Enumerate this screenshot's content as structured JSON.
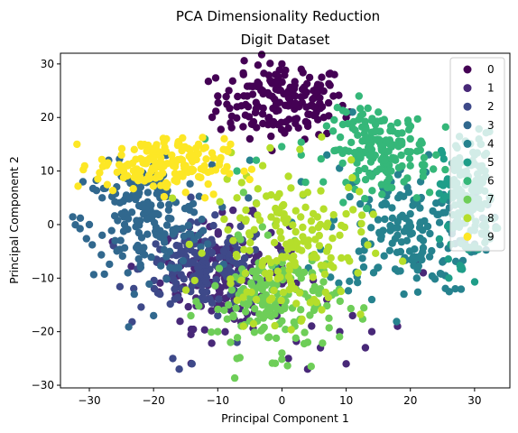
{
  "chart_data": {
    "type": "scatter",
    "title": "PCA Dimensionality Reduction",
    "subtitle": "Digit Dataset",
    "xlabel": "Principal Component 1",
    "ylabel": "Principal Component 2",
    "xlim": [
      -34.5,
      35.5
    ],
    "ylim": [
      -30.5,
      32.0
    ],
    "xticks": [
      -30,
      -20,
      -10,
      0,
      10,
      20,
      30
    ],
    "yticks": [
      -30,
      -20,
      -10,
      0,
      10,
      20,
      30
    ],
    "grid": false,
    "legend_position": "top-right",
    "palette": [
      "#440154",
      "#482878",
      "#3e4989",
      "#31688e",
      "#26828e",
      "#1f9e89",
      "#35b779",
      "#6ece58",
      "#b5de2b",
      "#fde725"
    ],
    "series": [
      {
        "name": "0",
        "center": [
          0,
          23
        ],
        "spread": [
          5,
          3.5
        ],
        "points": [
          [
            -6,
            28
          ],
          [
            0,
            30
          ],
          [
            3,
            29
          ],
          [
            -10,
            24
          ],
          [
            -8,
            19
          ],
          [
            10,
            20
          ],
          [
            7,
            17
          ],
          [
            -5,
            16
          ],
          [
            2,
            26
          ],
          [
            -2,
            20
          ],
          [
            5,
            22
          ],
          [
            -3,
            25
          ],
          [
            1,
            18
          ],
          [
            6,
            26
          ],
          [
            -7,
            22
          ],
          [
            8,
            24
          ],
          [
            4,
            19
          ],
          [
            -1,
            28
          ]
        ]
      },
      {
        "name": "1",
        "center": [
          -9,
          -9
        ],
        "spread": [
          5,
          5
        ],
        "points": [
          [
            10,
            -26
          ],
          [
            4,
            -27
          ],
          [
            13,
            -23
          ],
          [
            18,
            -19
          ],
          [
            22,
            -9
          ],
          [
            21,
            -7
          ],
          [
            11,
            -17
          ],
          [
            6,
            -23
          ],
          [
            9,
            -20
          ],
          [
            14,
            -20
          ],
          [
            7,
            -14
          ],
          [
            -10,
            -5
          ],
          [
            -6,
            -12
          ],
          [
            -14,
            -2
          ],
          [
            1,
            -25
          ],
          [
            -8,
            -16
          ],
          [
            -12,
            -9
          ],
          [
            -4,
            -6
          ]
        ]
      },
      {
        "name": "2",
        "center": [
          -12,
          -8
        ],
        "spread": [
          5,
          4
        ],
        "points": [
          [
            -17,
            -25
          ],
          [
            -16,
            -27
          ],
          [
            -14,
            -26
          ],
          [
            -7,
            -22
          ],
          [
            -12,
            -14
          ],
          [
            -18,
            -10
          ],
          [
            -9,
            -9
          ],
          [
            -14,
            -7
          ],
          [
            -11,
            -3
          ],
          [
            -6,
            -9
          ],
          [
            -16,
            -4
          ],
          [
            -8,
            -13
          ],
          [
            -13,
            -11
          ],
          [
            -10,
            -17
          ],
          [
            -19,
            -13
          ],
          [
            -5,
            -5
          ]
        ]
      },
      {
        "name": "3",
        "center": [
          -21,
          1
        ],
        "spread": [
          5,
          5
        ],
        "points": [
          [
            -31,
            8
          ],
          [
            -30,
            0
          ],
          [
            -27,
            12
          ],
          [
            -28,
            5
          ],
          [
            -25,
            2
          ],
          [
            -22,
            -8
          ],
          [
            -23,
            -13
          ],
          [
            -20,
            -17
          ],
          [
            -24,
            -9
          ],
          [
            -26,
            -3
          ],
          [
            -19,
            5
          ],
          [
            -21,
            1
          ],
          [
            -17,
            -1
          ],
          [
            -15,
            3
          ],
          [
            -28,
            -2
          ],
          [
            -22,
            7
          ],
          [
            -18,
            -6
          ],
          [
            -25,
            9
          ],
          [
            -13,
            -2
          ],
          [
            -20,
            11
          ]
        ]
      },
      {
        "name": "4",
        "center": [
          19,
          -1
        ],
        "spread": [
          6,
          6
        ],
        "points": [
          [
            26,
            0
          ],
          [
            30,
            -5
          ],
          [
            28,
            -3
          ],
          [
            25,
            -7
          ],
          [
            27,
            -12
          ],
          [
            21,
            -10
          ],
          [
            19,
            -13
          ],
          [
            14,
            -14
          ],
          [
            17,
            8
          ],
          [
            22,
            -3
          ],
          [
            24,
            4
          ],
          [
            18,
            -2
          ],
          [
            20,
            2
          ],
          [
            15,
            -8
          ],
          [
            23,
            -6
          ],
          [
            16,
            4
          ],
          [
            29,
            2
          ],
          [
            12,
            -5
          ],
          [
            -1,
            -8
          ],
          [
            3,
            8
          ],
          [
            7,
            13
          ],
          [
            -5,
            12
          ],
          [
            11,
            21
          ]
        ]
      },
      {
        "name": "5",
        "center": [
          29,
          5
        ],
        "spread": [
          2,
          6
        ],
        "points": [
          [
            27,
            12
          ],
          [
            29,
            9
          ],
          [
            30,
            7
          ],
          [
            28,
            5
          ],
          [
            31,
            3
          ],
          [
            27,
            0
          ],
          [
            29,
            -2
          ],
          [
            30,
            -4
          ],
          [
            28,
            -8
          ],
          [
            26,
            -10
          ],
          [
            31,
            10
          ],
          [
            27,
            6
          ],
          [
            30,
            13
          ],
          [
            28,
            2
          ]
        ]
      },
      {
        "name": "6",
        "center": [
          15,
          14
        ],
        "spread": [
          4,
          3.5
        ],
        "points": [
          [
            12,
            24
          ],
          [
            15,
            21
          ],
          [
            18,
            19
          ],
          [
            20,
            16
          ],
          [
            13,
            16
          ],
          [
            16,
            12
          ],
          [
            20,
            11
          ],
          [
            22,
            9
          ],
          [
            17,
            10
          ],
          [
            14,
            14
          ],
          [
            11,
            18
          ],
          [
            9,
            14
          ],
          [
            23,
            6
          ],
          [
            21,
            5
          ],
          [
            24,
            13
          ],
          [
            19,
            8
          ],
          [
            10,
            21
          ],
          [
            14,
            9
          ],
          [
            -7,
            10
          ],
          [
            -4,
            12
          ],
          [
            3,
            13
          ],
          [
            -12,
            16
          ]
        ]
      },
      {
        "name": "7",
        "center": [
          -1,
          -14
        ],
        "spread": [
          5,
          5
        ],
        "points": [
          [
            -10,
            -20
          ],
          [
            -8,
            -22
          ],
          [
            -5,
            -18
          ],
          [
            0,
            -24
          ],
          [
            2,
            -19
          ],
          [
            -3,
            -15
          ],
          [
            5,
            -16
          ],
          [
            -6,
            -12
          ],
          [
            3,
            -10
          ],
          [
            -2,
            -21
          ],
          [
            1,
            -13
          ],
          [
            -9,
            -16
          ],
          [
            4,
            -22
          ],
          [
            -4,
            -9
          ],
          [
            6,
            -12
          ],
          [
            -7,
            -25
          ],
          [
            0,
            -18
          ],
          [
            -1,
            0
          ],
          [
            -4,
            4
          ],
          [
            2,
            -3
          ],
          [
            -6,
            6
          ]
        ]
      },
      {
        "name": "8",
        "center": [
          1,
          -4
        ],
        "spread": [
          6,
          7
        ],
        "points": [
          [
            8,
            -8
          ],
          [
            2,
            -12
          ],
          [
            -3,
            -7
          ],
          [
            4,
            -3
          ],
          [
            -5,
            -2
          ],
          [
            -1,
            3
          ],
          [
            6,
            0
          ],
          [
            -7,
            5
          ],
          [
            1,
            9
          ],
          [
            -4,
            -14
          ],
          [
            3,
            -18
          ],
          [
            -2,
            -10
          ],
          [
            5,
            -14
          ],
          [
            -6,
            -19
          ],
          [
            7,
            -5
          ],
          [
            -9,
            1
          ],
          [
            10,
            2
          ],
          [
            0,
            -6
          ],
          [
            -8,
            -11
          ],
          [
            4,
            6
          ],
          [
            -3,
            11
          ],
          [
            9,
            -2
          ]
        ]
      },
      {
        "name": "9",
        "center": [
          -19,
          11
        ],
        "spread": [
          5,
          2.5
        ],
        "points": [
          [
            -25,
            13
          ],
          [
            -23,
            14
          ],
          [
            -20,
            12
          ],
          [
            -18,
            16
          ],
          [
            -16,
            15
          ],
          [
            -15,
            11
          ],
          [
            -19,
            9
          ],
          [
            -22,
            10
          ],
          [
            -21,
            12
          ],
          [
            -17,
            12
          ],
          [
            -14,
            13
          ],
          [
            -24,
            11
          ],
          [
            -20,
            14
          ],
          [
            -16,
            9
          ],
          [
            -13,
            15
          ],
          [
            -18,
            7
          ],
          [
            -11,
            10
          ],
          [
            -22,
            15
          ],
          [
            -12,
            5
          ],
          [
            -8,
            15
          ],
          [
            -15,
            6
          ],
          [
            -9,
            10
          ]
        ]
      }
    ]
  }
}
